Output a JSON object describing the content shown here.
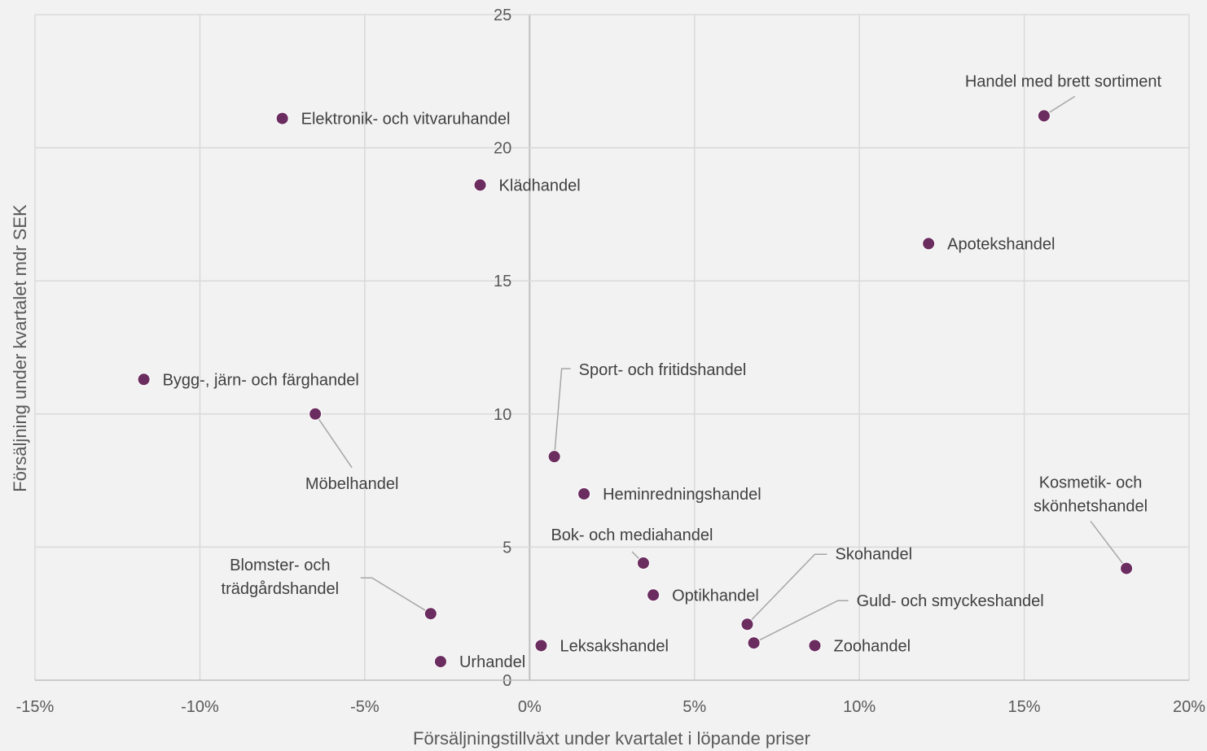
{
  "chart_data": {
    "type": "scatter",
    "xlabel": "Försäljningstillväxt under kvartalet i löpande priser",
    "ylabel": "Försäljning under kvartalet mdr SEK",
    "xlim": [
      -0.15,
      0.2
    ],
    "ylim": [
      0,
      25
    ],
    "x_ticks": [
      "-15%",
      "-10%",
      "-5%",
      "0%",
      "5%",
      "10%",
      "15%",
      "20%"
    ],
    "y_ticks": [
      "0",
      "5",
      "10",
      "15",
      "20",
      "25"
    ],
    "grid": true,
    "color": "#6b2c5f",
    "points": [
      {
        "label": "Handel med brett sortiment",
        "x": 0.156,
        "y": 21.2
      },
      {
        "label": "Elektronik- och vitvaruhandel",
        "x": -0.075,
        "y": 21.1
      },
      {
        "label": "Klädhandel",
        "x": -0.015,
        "y": 18.6
      },
      {
        "label": "Apotekshandel",
        "x": 0.121,
        "y": 16.4
      },
      {
        "label": "Bygg-, järn- och färghandel",
        "x": -0.117,
        "y": 11.3
      },
      {
        "label": "Möbelhandel",
        "x": -0.065,
        "y": 10.0
      },
      {
        "label": "Sport- och fritidshandel",
        "x": 0.0075,
        "y": 8.4
      },
      {
        "label": "Heminredningshandel",
        "x": 0.0165,
        "y": 7.0
      },
      {
        "label": "Kosmetik- och skönhetshandel",
        "x": 0.181,
        "y": 4.2
      },
      {
        "label": "Bok- och mediahandel",
        "x": 0.0345,
        "y": 4.4
      },
      {
        "label": "Optikhandel",
        "x": 0.0375,
        "y": 3.2
      },
      {
        "label": "Blomster- och trädgårdshandel",
        "x": -0.03,
        "y": 2.5
      },
      {
        "label": "Skohandel",
        "x": 0.066,
        "y": 2.1
      },
      {
        "label": "Guld- och smyckeshandel",
        "x": 0.068,
        "y": 1.4
      },
      {
        "label": "Zoohandel",
        "x": 0.0865,
        "y": 1.3
      },
      {
        "label": "Leksakshandel",
        "x": 0.0035,
        "y": 1.3
      },
      {
        "label": "Urhandel",
        "x": -0.027,
        "y": 0.7
      }
    ]
  }
}
